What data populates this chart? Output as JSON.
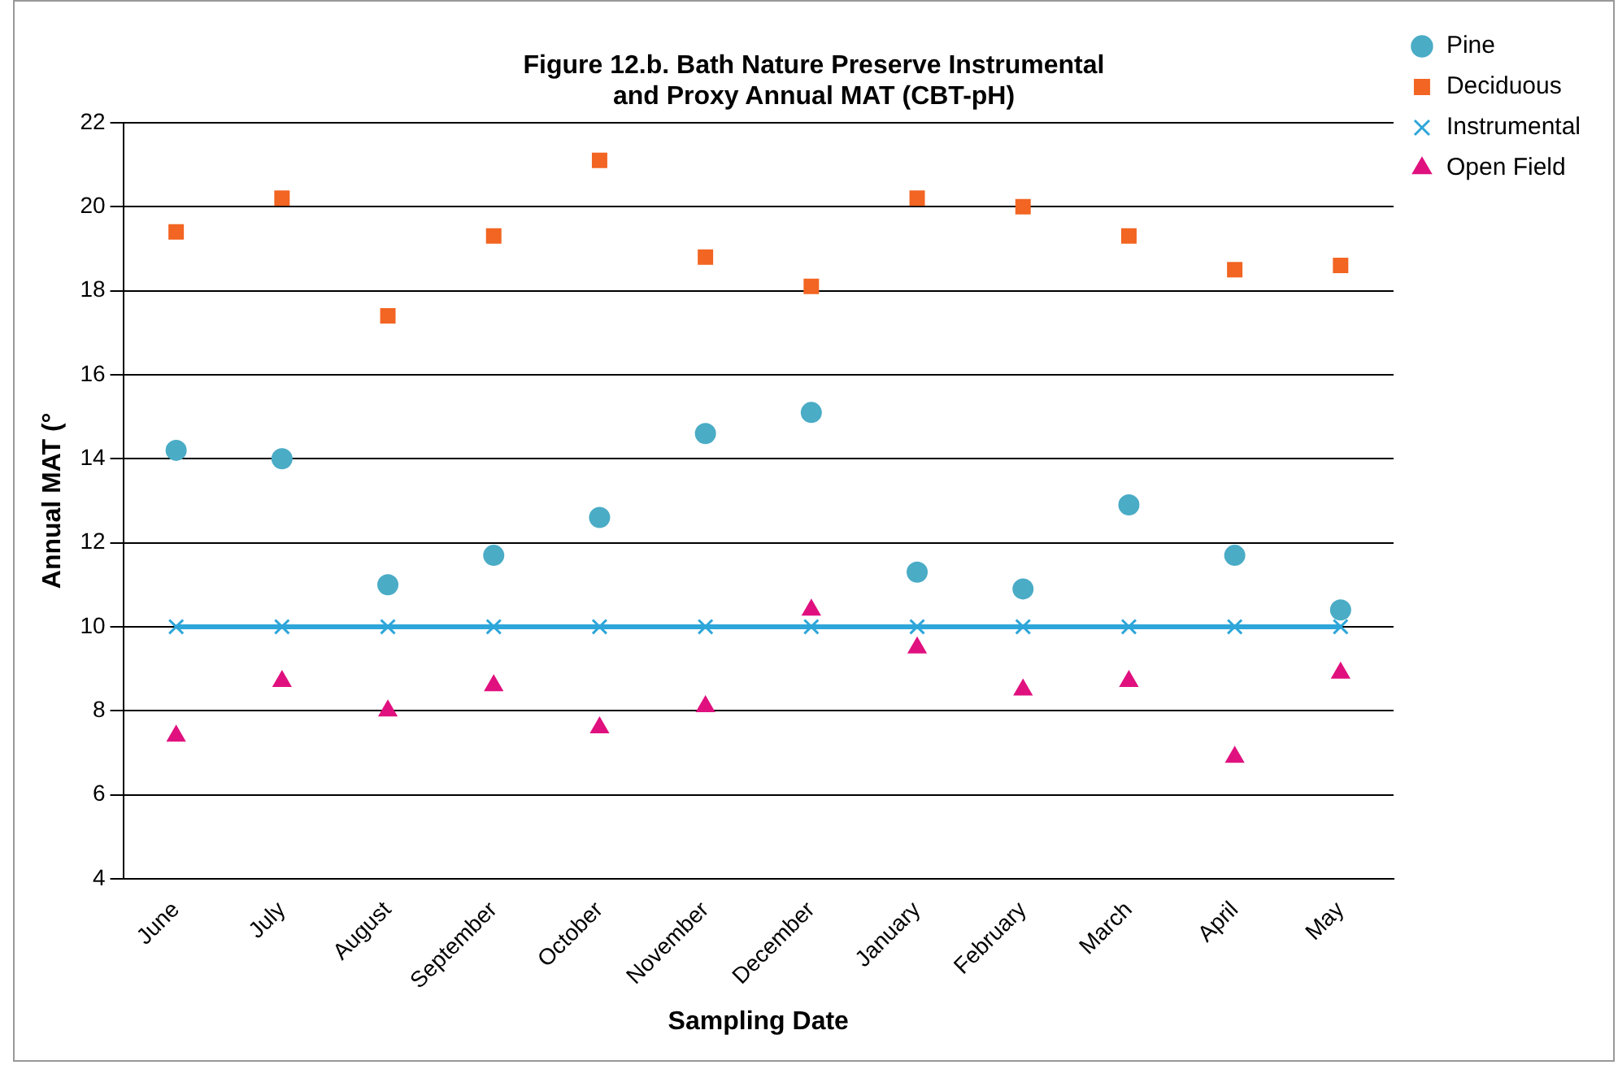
{
  "chart_data": {
    "type": "scatter",
    "title": [
      "Figure 12.b. Bath Nature Preserve Instrumental",
      "and Proxy Annual MAT (CBT-pH)"
    ],
    "xlabel": "Sampling Date",
    "ylabel": "Annual MAT (°",
    "categories": [
      "June",
      "July",
      "August",
      "September",
      "October",
      "November",
      "December",
      "January",
      "February",
      "March",
      "April",
      "May"
    ],
    "series": [
      {
        "name": "Pine",
        "marker": "circle",
        "color": "#4bacc6",
        "values": [
          14.2,
          14.0,
          11.0,
          11.7,
          12.6,
          14.6,
          15.1,
          11.3,
          10.9,
          12.9,
          11.7,
          10.4
        ]
      },
      {
        "name": "Deciduous",
        "marker": "square",
        "color": "#f26522",
        "values": [
          19.4,
          20.2,
          17.4,
          19.3,
          21.1,
          18.8,
          18.1,
          20.2,
          20.0,
          19.3,
          18.5,
          18.6
        ]
      },
      {
        "name": "Instrumental",
        "type": "line",
        "marker": "cross",
        "color": "#2ea6d9",
        "values": [
          10,
          10,
          10,
          10,
          10,
          10,
          10,
          10,
          10,
          10,
          10,
          10
        ]
      },
      {
        "name": "Open Field",
        "marker": "triangle",
        "color": "#e0117f",
        "values": [
          7.4,
          8.7,
          8.0,
          8.6,
          7.6,
          8.1,
          10.4,
          9.5,
          8.5,
          8.7,
          6.9,
          8.9
        ]
      }
    ],
    "ylim": [
      4,
      22
    ],
    "yticks": [
      4,
      6,
      8,
      10,
      12,
      14,
      16,
      18,
      20,
      22
    ],
    "grid": "y",
    "legend": "top right"
  }
}
